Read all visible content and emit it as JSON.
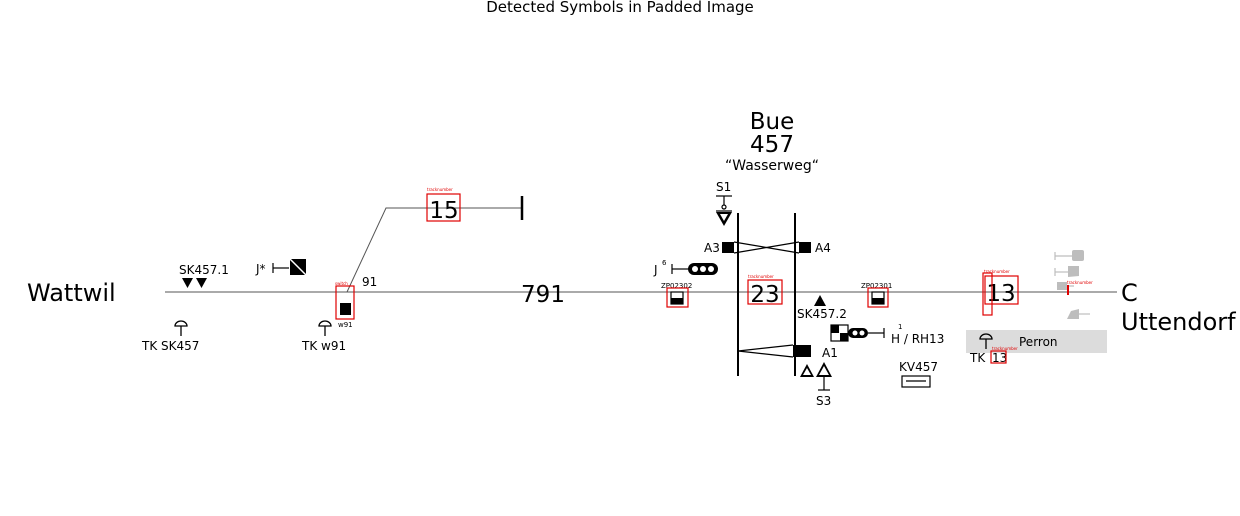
{
  "title": "Detected Symbols in Padded Image",
  "station": {
    "name": "Bue",
    "number": "457",
    "subtitle": "“Wasserweg“"
  },
  "endpoints": {
    "left": "Wattwil",
    "right_letter": "C",
    "right_name": "Uttendorf"
  },
  "track_numbers": {
    "t15": "15",
    "t791": "791",
    "t23": "23",
    "t13": "13",
    "t91": "91"
  },
  "signal_labels": {
    "S1": "S1",
    "A3": "A3",
    "A4": "A4",
    "J6": "J",
    "J6_sup": "6",
    "Jstar": "J*",
    "SK457_1": "SK457.1",
    "SK457_2": "SK457.2",
    "TK_SK457": "TK SK457",
    "TK_w91": "TK w91",
    "w91": "w91",
    "A1": "A1",
    "S3": "S3",
    "H_RH13": "H / RH13",
    "H_RH13_sup": "1",
    "KV457": "KV457",
    "TK13_prefix": "TK",
    "TK13_num": "13"
  },
  "detections": {
    "zp02302": "ZP02302",
    "zp02301": "ZP02301",
    "tracknumber": "tracknumber",
    "switch": "switch"
  },
  "platform": {
    "label": "Perron"
  },
  "colors": {
    "detection_box": "#e00000",
    "platform": "#dcdcdc",
    "faded": "#bdbdbd"
  }
}
